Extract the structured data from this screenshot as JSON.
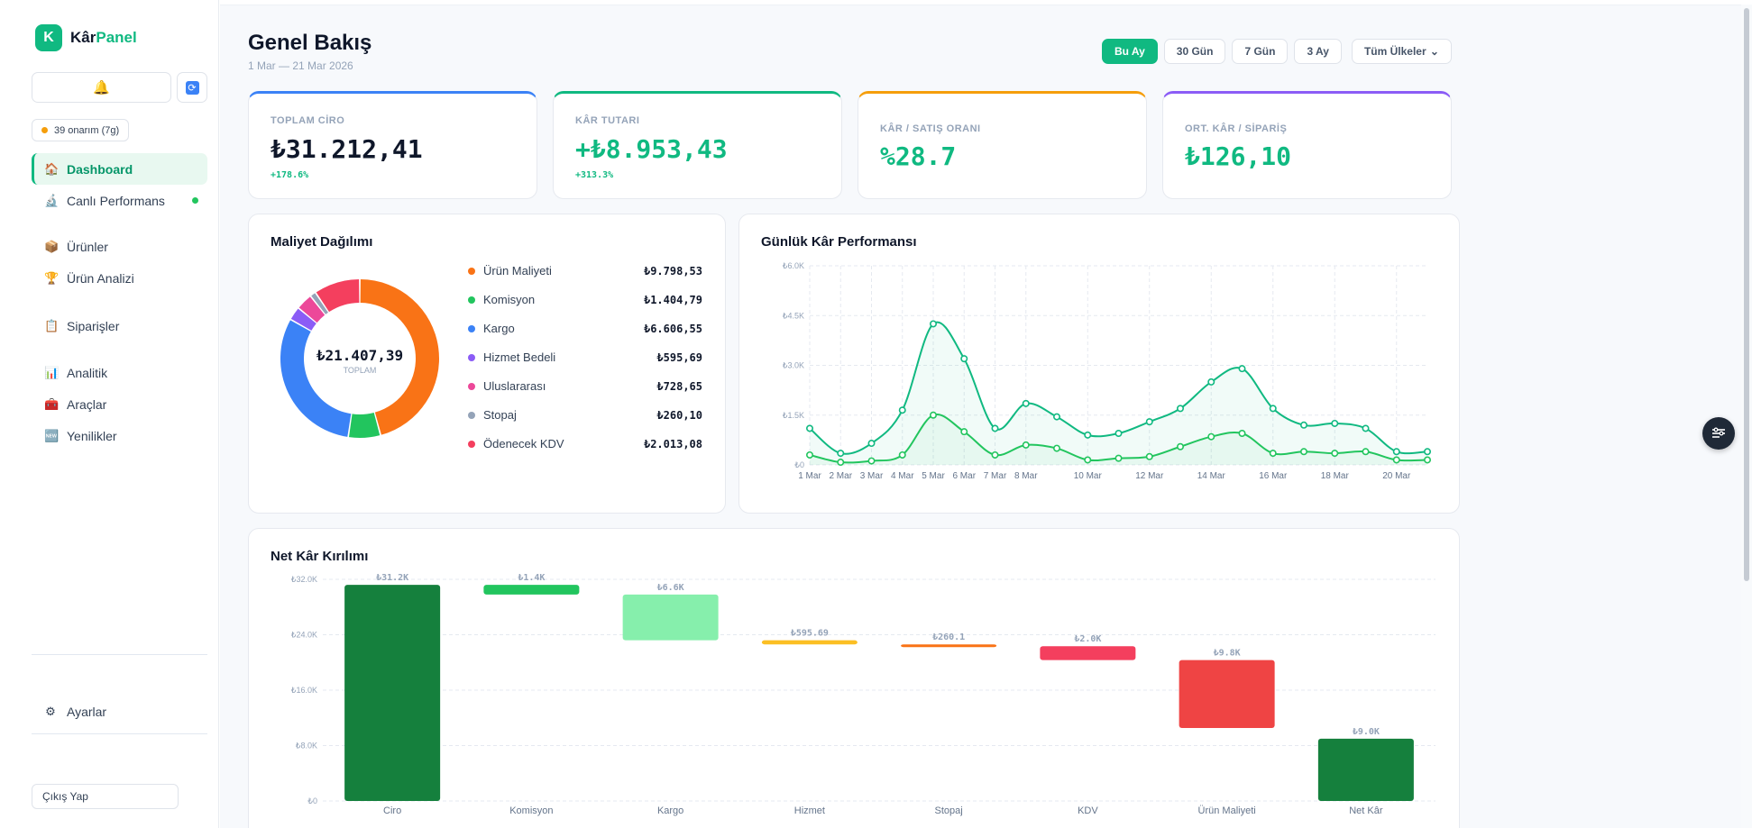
{
  "brand": {
    "initial": "K",
    "name_a": "Kâr",
    "name_b": "Panel"
  },
  "sidebar": {
    "repair_chip": "39 onarım (7g)",
    "items": [
      {
        "label": "Dashboard",
        "icon": "home-icon"
      },
      {
        "label": "Canlı Performans",
        "icon": "microscope-icon"
      },
      {
        "label": "Ürünler",
        "icon": "box-icon"
      },
      {
        "label": "Ürün Analizi",
        "icon": "trophy-icon"
      },
      {
        "label": "Siparişler",
        "icon": "clipboard-icon"
      },
      {
        "label": "Analitik",
        "icon": "bar-chart-icon"
      },
      {
        "label": "Araçlar",
        "icon": "toolbox-icon"
      },
      {
        "label": "Yenilikler",
        "icon": "new-icon"
      }
    ],
    "settings": "Ayarlar",
    "logout": "Çıkış Yap"
  },
  "header": {
    "title": "Genel Bakış",
    "subtitle": "1 Mar — 21 Mar 2026",
    "filters": [
      "Bu Ay",
      "30 Gün",
      "7 Gün",
      "3 Ay"
    ],
    "country_select": "Tüm Ülkeler"
  },
  "kpis": [
    {
      "label": "TOPLAM CİRO",
      "value": "₺31.212,41",
      "change": "+178.6%",
      "accent": "#3b82f6"
    },
    {
      "label": "KÂR TUTARI",
      "value": "+₺8.953,43",
      "change": "+313.3%",
      "accent": "#10b981"
    },
    {
      "label": "KÂR / SATIŞ ORANI",
      "value": "%28.7",
      "accent": "#f59e0b"
    },
    {
      "label": "ORT. KÂR / SİPARİŞ",
      "value": "₺126,10",
      "accent": "#8b5cf6"
    }
  ],
  "cost_card": {
    "title": "Maliyet Dağılımı",
    "total": "₺21.407,39",
    "total_label": "TOPLAM"
  },
  "daily_card": {
    "title": "Günlük Kâr Performansı"
  },
  "waterfall_card": {
    "title": "Net Kâr Kırılımı"
  },
  "chart_data": [
    {
      "type": "pie",
      "title": "Maliyet Dağılımı",
      "categories": [
        "Ürün Maliyeti",
        "Komisyon",
        "Kargo",
        "Hizmet Bedeli",
        "Uluslararası",
        "Stopaj",
        "Ödenecek KDV"
      ],
      "values": [
        9798.53,
        1404.79,
        6606.55,
        595.69,
        728.65,
        260.1,
        2013.08
      ],
      "labels": [
        "₺9.798,53",
        "₺1.404,79",
        "₺6.606,55",
        "₺595,69",
        "₺728,65",
        "₺260,10",
        "₺2.013,08"
      ],
      "colors": [
        "#f97316",
        "#22c55e",
        "#3b82f6",
        "#8b5cf6",
        "#ec4899",
        "#94a3b8",
        "#f43f5e"
      ]
    },
    {
      "type": "line",
      "title": "Günlük Kâr Performansı",
      "x": [
        "1 Mar",
        "2 Mar",
        "3 Mar",
        "4 Mar",
        "5 Mar",
        "6 Mar",
        "7 Mar",
        "8 Mar",
        "9 Mar",
        "10 Mar",
        "11 Mar",
        "12 Mar",
        "13 Mar",
        "14 Mar",
        "15 Mar",
        "16 Mar",
        "17 Mar",
        "18 Mar",
        "19 Mar",
        "20 Mar",
        "21 Mar"
      ],
      "x_tick_labels": [
        "1 Mar",
        "2 Mar",
        "3 Mar",
        "4 Mar",
        "5 Mar",
        "6 Mar",
        "7 Mar",
        "8 Mar",
        "10 Mar",
        "12 Mar",
        "14 Mar",
        "16 Mar",
        "18 Mar",
        "20 Mar"
      ],
      "y_tick_labels": [
        "₺0",
        "₺1.5K",
        "₺3.0K",
        "₺4.5K",
        "₺6.0K"
      ],
      "ylim": [
        0,
        6000
      ],
      "series": [
        {
          "values": [
            1100,
            350,
            650,
            1650,
            4250,
            3200,
            1100,
            1850,
            1450,
            900,
            950,
            1300,
            1700,
            2500,
            2900,
            1700,
            1200,
            1250,
            1100,
            400,
            400
          ],
          "color": "#10b981"
        },
        {
          "values": [
            300,
            80,
            120,
            300,
            1500,
            1000,
            300,
            600,
            500,
            150,
            200,
            250,
            550,
            850,
            950,
            350,
            400,
            350,
            400,
            150,
            150
          ],
          "color": "#22c55e"
        }
      ]
    },
    {
      "type": "bar",
      "subtype": "waterfall",
      "title": "Net Kâr Kırılımı",
      "categories": [
        "Ciro",
        "Komisyon",
        "Kargo",
        "Hizmet",
        "Stopaj",
        "KDV",
        "Ürün Maliyeti",
        "Net Kâr"
      ],
      "values": [
        31200,
        -1400,
        -6600,
        -595.69,
        -260.1,
        -2000,
        -9800,
        9000
      ],
      "data_labels": [
        "₺31.2K",
        "₺1.4K",
        "₺6.6K",
        "₺595.69",
        "₺260.1",
        "₺2.0K",
        "₺9.8K",
        "₺9.0K"
      ],
      "colors": [
        "#15803d",
        "#22c55e",
        "#86efac",
        "#fbbf24",
        "#f97316",
        "#f43f5e",
        "#ef4444",
        "#15803d"
      ],
      "y_tick_labels": [
        "₺0",
        "₺8.0K",
        "₺16.0K",
        "₺24.0K",
        "₺32.0K"
      ],
      "ylim": [
        0,
        32000
      ]
    }
  ]
}
